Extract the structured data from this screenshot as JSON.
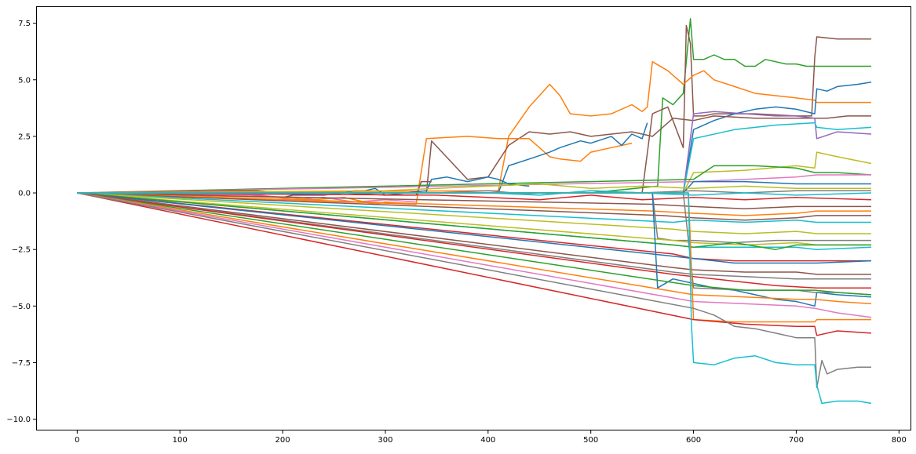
{
  "chart_data": {
    "type": "line",
    "title": "",
    "xlabel": "",
    "ylabel": "",
    "xlim": [
      -40,
      812
    ],
    "ylim": [
      -10.5,
      8.25
    ],
    "x_ticks": [
      0,
      100,
      200,
      300,
      400,
      500,
      600,
      700,
      800
    ],
    "x_tick_labels": [
      "0",
      "100",
      "200",
      "300",
      "400",
      "500",
      "600",
      "700",
      "800"
    ],
    "y_ticks": [
      -10.0,
      -7.5,
      -5.0,
      -2.5,
      0.0,
      2.5,
      5.0,
      7.5
    ],
    "y_tick_labels": [
      "−10.0",
      "−7.5",
      "−5.0",
      "−2.5",
      "0.0",
      "2.5",
      "5.0",
      "7.5"
    ],
    "grid": false,
    "legend": "none",
    "palette": [
      "#1f77b4",
      "#ff7f0e",
      "#2ca02c",
      "#d62728",
      "#9467bd",
      "#8c564b",
      "#e377c2",
      "#7f7f7f",
      "#bcbd22",
      "#17becf"
    ],
    "series": [
      {
        "color": "#2ca02c",
        "x": [
          0,
          500,
          565,
          570,
          580,
          590,
          597,
          600,
          610,
          620,
          630,
          640,
          650,
          660,
          670,
          680,
          690,
          700,
          710,
          720,
          730,
          740,
          750,
          760,
          773
        ],
        "y": [
          0,
          0,
          0.3,
          4.2,
          3.9,
          4.4,
          7.7,
          5.9,
          5.9,
          6.1,
          5.9,
          5.9,
          5.6,
          5.6,
          5.9,
          5.8,
          5.7,
          5.7,
          5.6,
          5.6,
          5.6,
          5.6,
          5.6,
          5.6,
          5.6
        ]
      },
      {
        "color": "#8c564b",
        "x": [
          0,
          550,
          560,
          575,
          590,
          593,
          597,
          600,
          610,
          620,
          660,
          700,
          715,
          718,
          720,
          740,
          760,
          773
        ],
        "y": [
          0,
          0,
          3.5,
          3.8,
          2.0,
          7.4,
          6.6,
          3.4,
          3.4,
          3.5,
          3.5,
          3.4,
          3.4,
          6.0,
          6.9,
          6.8,
          6.8,
          6.8
        ]
      },
      {
        "color": "#ff7f0e",
        "x": [
          0,
          410,
          420,
          440,
          460,
          470,
          480,
          500,
          520,
          540,
          550,
          555,
          560,
          575,
          590,
          600,
          610,
          620,
          640,
          660,
          680,
          700,
          718,
          720,
          740,
          773
        ],
        "y": [
          0,
          0.1,
          2.5,
          3.8,
          4.8,
          4.3,
          3.5,
          3.4,
          3.5,
          3.9,
          3.6,
          3.8,
          5.8,
          5.4,
          4.8,
          5.2,
          5.4,
          5.0,
          4.7,
          4.4,
          4.3,
          4.2,
          4.1,
          4.0,
          4.0,
          4.0
        ]
      },
      {
        "color": "#1f77b4",
        "x": [
          0,
          590,
          600,
          620,
          640,
          660,
          680,
          700,
          718,
          720,
          730,
          740,
          760,
          773
        ],
        "y": [
          0,
          0,
          2.8,
          3.2,
          3.5,
          3.7,
          3.8,
          3.7,
          3.5,
          4.6,
          4.5,
          4.7,
          4.8,
          4.9
        ]
      },
      {
        "color": "#8c564b",
        "x": [
          0,
          340,
          345,
          380,
          400,
          420,
          440,
          460,
          480,
          500,
          520,
          540,
          560,
          580,
          600,
          620,
          660,
          700,
          718,
          730,
          750,
          773
        ],
        "y": [
          0,
          0,
          2.3,
          0.6,
          0.7,
          2.1,
          2.7,
          2.6,
          2.7,
          2.5,
          2.6,
          2.7,
          2.5,
          3.3,
          3.2,
          3.4,
          3.3,
          3.3,
          3.3,
          3.3,
          3.4,
          3.4
        ]
      },
      {
        "color": "#9467bd",
        "x": [
          0,
          590,
          600,
          620,
          650,
          680,
          700,
          718,
          720,
          740,
          773
        ],
        "y": [
          0,
          0,
          3.5,
          3.6,
          3.5,
          3.4,
          3.4,
          3.3,
          2.4,
          2.7,
          2.6
        ]
      },
      {
        "color": "#17becf",
        "x": [
          0,
          590,
          600,
          640,
          680,
          718,
          720,
          740,
          773
        ],
        "y": [
          0,
          0,
          2.4,
          2.8,
          3.0,
          3.1,
          2.9,
          2.8,
          2.9
        ]
      },
      {
        "color": "#ff7f0e",
        "x": [
          0,
          330,
          340,
          380,
          410,
          415,
          440,
          450,
          460,
          470,
          490,
          500,
          520,
          540
        ],
        "y": [
          0,
          -0.5,
          2.4,
          2.5,
          2.4,
          2.4,
          2.4,
          2.0,
          1.6,
          1.5,
          1.4,
          1.8,
          2.0,
          2.2
        ]
      },
      {
        "color": "#1f77b4",
        "x": [
          0,
          410,
          420,
          440,
          460,
          470,
          490,
          500,
          520,
          530,
          540,
          550,
          555
        ],
        "y": [
          0,
          0,
          1.2,
          1.5,
          1.8,
          2.0,
          2.3,
          2.2,
          2.5,
          2.1,
          2.6,
          2.4,
          3.1
        ]
      },
      {
        "color": "#bcbd22",
        "x": [
          0,
          590,
          600,
          650,
          700,
          718,
          720,
          740,
          773
        ],
        "y": [
          0,
          0,
          0.9,
          1.0,
          1.2,
          1.1,
          1.8,
          1.6,
          1.3
        ]
      },
      {
        "color": "#2ca02c",
        "x": [
          0,
          600,
          620,
          660,
          700,
          718,
          740,
          773
        ],
        "y": [
          0,
          0.6,
          1.2,
          1.2,
          1.1,
          0.9,
          0.9,
          0.8
        ]
      },
      {
        "color": "#e377c2",
        "x": [
          0,
          600,
          650,
          700,
          720,
          773
        ],
        "y": [
          0,
          0.5,
          0.6,
          0.7,
          0.8,
          0.8
        ]
      },
      {
        "color": "#1f77b4",
        "x": [
          0,
          590,
          600,
          650,
          700,
          773
        ],
        "y": [
          0,
          0,
          0.5,
          0.5,
          0.4,
          0.4
        ]
      },
      {
        "color": "#1f77b4",
        "x": [
          0,
          160,
          170,
          200,
          210,
          240,
          260,
          270,
          280,
          290,
          300,
          340,
          345,
          360,
          380,
          400,
          410,
          420,
          440
        ],
        "y": [
          0,
          0,
          -0.1,
          -0.2,
          -0.1,
          -0.1,
          0,
          0.1,
          0.1,
          0.2,
          -0.1,
          0.1,
          0.6,
          0.7,
          0.5,
          0.7,
          0.6,
          0.4,
          0.3
        ]
      },
      {
        "color": "#8c564b",
        "x": [
          0,
          155,
          175,
          200,
          260,
          300,
          330,
          335,
          345
        ],
        "y": [
          0,
          0.1,
          0.1,
          0,
          0,
          -0.1,
          -0.1,
          0.5,
          0.5
        ]
      },
      {
        "color": "#e377c2",
        "x": [
          0,
          180,
          210,
          240,
          270,
          300,
          330
        ],
        "y": [
          0,
          -0.1,
          -0.3,
          -0.2,
          -0.4,
          -0.3,
          -0.4
        ]
      },
      {
        "color": "#ff7f0e",
        "x": [
          0,
          200,
          230,
          260,
          290,
          300,
          330
        ],
        "y": [
          0,
          -0.2,
          -0.3,
          -0.2,
          -0.5,
          -0.4,
          -0.5
        ]
      },
      {
        "color": "#bcbd22",
        "x": [
          0,
          300,
          350,
          400,
          450,
          500,
          550,
          600,
          650,
          700,
          773
        ],
        "y": [
          0,
          0.1,
          0.2,
          0.3,
          0.4,
          0.2,
          0.3,
          0.2,
          0.3,
          0.2,
          0.2
        ]
      },
      {
        "color": "#d62728",
        "x": [
          0,
          350,
          400,
          450,
          500,
          550,
          600,
          650,
          700,
          773
        ],
        "y": [
          0,
          -0.1,
          -0.2,
          -0.3,
          -0.1,
          -0.3,
          -0.2,
          -0.3,
          -0.2,
          -0.3
        ]
      },
      {
        "color": "#7f7f7f",
        "x": [
          0,
          350,
          400,
          450,
          500,
          550,
          600,
          650,
          700,
          773
        ],
        "y": [
          0,
          0,
          0.1,
          -0.1,
          0.1,
          0,
          0.1,
          0,
          0.1,
          0.1
        ]
      },
      {
        "color": "#17becf",
        "x": [
          0,
          400,
          450,
          500,
          550,
          600,
          650,
          700,
          773
        ],
        "y": [
          0,
          0,
          -0.1,
          0.1,
          0,
          -0.1,
          0,
          -0.1,
          0
        ]
      },
      {
        "color": "#8c564b",
        "x": [
          0,
          560,
          600,
          650,
          700,
          773
        ],
        "y": [
          0,
          -0.5,
          -0.6,
          -0.7,
          -0.6,
          -0.6
        ]
      },
      {
        "color": "#ff7f0e",
        "x": [
          0,
          560,
          600,
          650,
          700,
          720,
          773
        ],
        "y": [
          0,
          -0.8,
          -0.9,
          -1.0,
          -0.9,
          -0.8,
          -0.8
        ]
      },
      {
        "color": "#8c564b",
        "x": [
          0,
          570,
          600,
          650,
          700,
          720,
          773
        ],
        "y": [
          0,
          -1.0,
          -1.1,
          -1.2,
          -1.1,
          -1.0,
          -1.0
        ]
      },
      {
        "color": "#17becf",
        "x": [
          0,
          580,
          600,
          650,
          700,
          720,
          773
        ],
        "y": [
          0,
          -1.3,
          -1.2,
          -1.3,
          -1.2,
          -1.3,
          -1.3
        ]
      },
      {
        "color": "#bcbd22",
        "x": [
          0,
          580,
          600,
          650,
          700,
          720,
          773
        ],
        "y": [
          0,
          -1.6,
          -1.7,
          -1.8,
          -1.7,
          -1.8,
          -1.8
        ]
      },
      {
        "color": "#7f7f7f",
        "x": [
          0,
          560,
          565,
          580,
          600,
          640,
          680,
          720,
          773
        ],
        "y": [
          0,
          0,
          -2.0,
          -2.1,
          -2.1,
          -2.2,
          -2.1,
          -2.1,
          -2.1
        ]
      },
      {
        "color": "#bcbd22",
        "x": [
          0,
          580,
          600,
          650,
          700,
          720,
          773
        ],
        "y": [
          0,
          -2.1,
          -2.2,
          -2.3,
          -2.2,
          -2.3,
          -2.3
        ]
      },
      {
        "color": "#17becf",
        "x": [
          0,
          580,
          600,
          650,
          700,
          720,
          773
        ],
        "y": [
          0,
          -2.3,
          -2.4,
          -2.4,
          -2.4,
          -2.5,
          -2.4
        ]
      },
      {
        "color": "#2ca02c",
        "x": [
          0,
          580,
          600,
          640,
          680,
          700,
          720,
          773
        ],
        "y": [
          0,
          -2.3,
          -2.4,
          -2.2,
          -2.5,
          -2.3,
          -2.3,
          -2.3
        ]
      },
      {
        "color": "#d62728",
        "x": [
          0,
          580,
          600,
          640,
          680,
          720,
          773
        ],
        "y": [
          0,
          -2.7,
          -2.9,
          -3.0,
          -3.0,
          -3.0,
          -3.0
        ]
      },
      {
        "color": "#1f77b4",
        "x": [
          0,
          580,
          600,
          640,
          680,
          720,
          773
        ],
        "y": [
          0,
          -2.8,
          -2.9,
          -3.1,
          -3.1,
          -3.1,
          -3.0
        ]
      },
      {
        "color": "#8c564b",
        "x": [
          0,
          580,
          600,
          650,
          700,
          720,
          773
        ],
        "y": [
          0,
          -3.3,
          -3.4,
          -3.5,
          -3.5,
          -3.6,
          -3.6
        ]
      },
      {
        "color": "#7f7f7f",
        "x": [
          0,
          580,
          600,
          650,
          700,
          720,
          773
        ],
        "y": [
          0,
          -3.5,
          -3.6,
          -3.7,
          -3.8,
          -3.8,
          -3.8
        ]
      },
      {
        "color": "#d62728",
        "x": [
          0,
          580,
          600,
          640,
          680,
          720,
          773
        ],
        "y": [
          0,
          -3.6,
          -3.7,
          -3.9,
          -4.1,
          -4.2,
          -4.2
        ]
      },
      {
        "color": "#1f77b4",
        "x": [
          0,
          560,
          565,
          580,
          600,
          620,
          640,
          660,
          680,
          700,
          718,
          720,
          740,
          773
        ],
        "y": [
          0,
          0,
          -4.2,
          -3.8,
          -4.0,
          -4.2,
          -4.3,
          -4.5,
          -4.7,
          -4.8,
          -5.0,
          -4.4,
          -4.5,
          -4.6
        ]
      },
      {
        "color": "#7f7f7f",
        "x": [
          0,
          590,
          600,
          650,
          700,
          718,
          740,
          773
        ],
        "y": [
          0,
          0,
          -4.2,
          -4.3,
          -4.3,
          -4.4,
          -4.4,
          -4.5
        ]
      },
      {
        "color": "#2ca02c",
        "x": [
          0,
          600,
          650,
          700,
          718,
          740,
          773
        ],
        "y": [
          0,
          -4.1,
          -4.3,
          -4.3,
          -4.3,
          -4.4,
          -4.5
        ]
      },
      {
        "color": "#ff7f0e",
        "x": [
          0,
          600,
          650,
          700,
          718,
          740,
          773
        ],
        "y": [
          0,
          -4.5,
          -4.6,
          -4.7,
          -4.7,
          -4.8,
          -4.9
        ]
      },
      {
        "color": "#e377c2",
        "x": [
          0,
          600,
          650,
          700,
          718,
          740,
          773
        ],
        "y": [
          0,
          -4.8,
          -4.9,
          -5.0,
          -5.1,
          -5.3,
          -5.5
        ]
      },
      {
        "color": "#ff7f0e",
        "x": [
          0,
          595,
          600,
          640,
          680,
          718,
          720,
          773
        ],
        "y": [
          0,
          0,
          -5.6,
          -5.7,
          -5.7,
          -5.7,
          -5.6,
          -5.6
        ]
      },
      {
        "color": "#d62728",
        "x": [
          0,
          600,
          650,
          700,
          718,
          720,
          740,
          773
        ],
        "y": [
          0,
          -5.6,
          -5.8,
          -5.9,
          -5.9,
          -6.3,
          -6.1,
          -6.2
        ]
      },
      {
        "color": "#7f7f7f",
        "x": [
          0,
          600,
          620,
          640,
          660,
          680,
          700,
          718,
          720,
          725,
          730,
          740,
          760,
          773
        ],
        "y": [
          0,
          -5.1,
          -5.4,
          -5.9,
          -6.0,
          -6.2,
          -6.4,
          -6.4,
          -8.6,
          -7.4,
          -8.0,
          -7.8,
          -7.7,
          -7.7
        ]
      },
      {
        "color": "#17becf",
        "x": [
          0,
          595,
          598,
          600,
          620,
          640,
          660,
          680,
          700,
          718,
          720,
          725,
          740,
          760,
          773
        ],
        "y": [
          0,
          0,
          -5.8,
          -7.5,
          -7.6,
          -7.3,
          -7.2,
          -7.5,
          -7.6,
          -7.6,
          -8.5,
          -9.3,
          -9.2,
          -9.2,
          -9.3
        ]
      }
    ]
  }
}
